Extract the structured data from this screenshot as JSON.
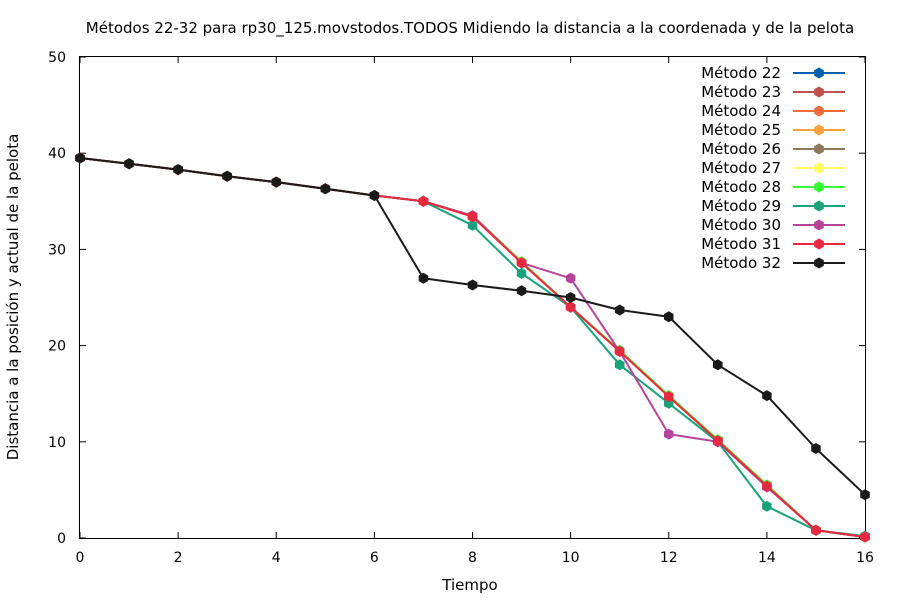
{
  "chart_data": {
    "type": "line",
    "title": "Métodos 22-32 para rp30_125.movstodos.TODOS Midiendo la distancia a la coordenada y de la pelota",
    "xlabel": "Tiempo",
    "ylabel": "Distancia a la posición y actual de la pelota",
    "xlim": [
      0,
      16
    ],
    "ylim": [
      0,
      50
    ],
    "xticks": [
      0,
      2,
      4,
      6,
      8,
      10,
      12,
      14,
      16
    ],
    "yticks": [
      0,
      10,
      20,
      30,
      40,
      50
    ],
    "grid": false,
    "legend_position": "top-right",
    "series": [
      {
        "name": "Método 22",
        "color": "#0060ad",
        "x": [
          0,
          1,
          2,
          3,
          4,
          5,
          6,
          7,
          8,
          9,
          10,
          11,
          12,
          13,
          14,
          15,
          16
        ],
        "y": [
          39.5,
          38.9,
          38.3,
          37.6,
          37.0,
          36.3,
          35.6,
          35.0,
          33.5,
          28.7,
          24.0,
          19.5,
          14.8,
          10.2,
          5.5,
          0.8,
          0.1
        ]
      },
      {
        "name": "Método 23",
        "color": "#c0504d",
        "x": [
          0,
          1,
          2,
          3,
          4,
          5,
          6,
          7,
          8,
          9,
          10,
          11,
          12,
          13,
          14,
          15,
          16
        ],
        "y": [
          39.5,
          38.9,
          38.3,
          37.6,
          37.0,
          36.3,
          35.6,
          35.0,
          33.5,
          28.7,
          24.0,
          19.5,
          14.8,
          10.2,
          5.5,
          0.8,
          0.1
        ]
      },
      {
        "name": "Método 24",
        "color": "#f26b38",
        "x": [
          0,
          1,
          2,
          3,
          4,
          5,
          6,
          7,
          8,
          9,
          10,
          11,
          12,
          13,
          14,
          15,
          16
        ],
        "y": [
          39.5,
          38.9,
          38.3,
          37.6,
          37.0,
          36.3,
          35.6,
          35.0,
          33.5,
          28.7,
          24.0,
          19.5,
          14.8,
          10.2,
          5.5,
          0.8,
          0.1
        ]
      },
      {
        "name": "Método 25",
        "color": "#f9a03f",
        "x": [
          0,
          1,
          2,
          3,
          4,
          5,
          6,
          7,
          8,
          9,
          10,
          11,
          12,
          13,
          14,
          15,
          16
        ],
        "y": [
          39.5,
          38.9,
          38.3,
          37.6,
          37.0,
          36.3,
          35.6,
          35.0,
          33.5,
          28.7,
          24.0,
          19.5,
          14.8,
          10.2,
          5.5,
          0.8,
          0.1
        ]
      },
      {
        "name": "Método 26",
        "color": "#8a7a5a",
        "x": [
          0,
          1,
          2,
          3,
          4,
          5,
          6,
          7,
          8,
          9,
          10,
          11,
          12,
          13,
          14,
          15,
          16
        ],
        "y": [
          39.5,
          38.9,
          38.3,
          37.6,
          37.0,
          36.3,
          35.6,
          35.0,
          33.5,
          28.7,
          24.0,
          19.5,
          14.8,
          10.2,
          5.5,
          0.8,
          0.1
        ]
      },
      {
        "name": "Método 27",
        "color": "#ffff66",
        "x": [
          0,
          1,
          2,
          3,
          4,
          5,
          6,
          7,
          8,
          9,
          10,
          11,
          12,
          13,
          14,
          15,
          16
        ],
        "y": [
          39.5,
          38.9,
          38.3,
          37.6,
          37.0,
          36.3,
          35.6,
          35.0,
          33.5,
          28.7,
          24.0,
          19.5,
          14.8,
          10.2,
          5.5,
          0.8,
          0.1
        ]
      },
      {
        "name": "Método 28",
        "color": "#33ff33",
        "x": [
          0,
          1,
          2,
          3,
          4,
          5,
          6,
          7,
          8,
          9,
          10,
          11,
          12,
          13,
          14,
          15,
          16
        ],
        "y": [
          39.5,
          38.9,
          38.3,
          37.6,
          37.0,
          36.3,
          35.6,
          35.0,
          33.5,
          28.7,
          24.0,
          19.5,
          14.8,
          10.2,
          5.5,
          0.8,
          0.1
        ]
      },
      {
        "name": "Método 29",
        "color": "#1aa37a",
        "x": [
          0,
          1,
          2,
          3,
          4,
          5,
          6,
          7,
          8,
          9,
          10,
          11,
          12,
          13,
          14,
          15,
          16
        ],
        "y": [
          39.5,
          38.9,
          38.3,
          37.6,
          37.0,
          36.3,
          35.6,
          35.0,
          32.5,
          27.5,
          24.0,
          18.0,
          14.0,
          10.0,
          3.3,
          0.8,
          0.2
        ]
      },
      {
        "name": "Método 30",
        "color": "#b5449b",
        "x": [
          0,
          1,
          2,
          3,
          4,
          5,
          6,
          7,
          8,
          9,
          10,
          11,
          12,
          13,
          14,
          15,
          16
        ],
        "y": [
          39.5,
          38.9,
          38.3,
          37.6,
          37.0,
          36.3,
          35.6,
          35.0,
          33.5,
          28.6,
          27.0,
          19.4,
          10.8,
          10.0,
          5.3,
          0.8,
          0.1
        ]
      },
      {
        "name": "Método 31",
        "color": "#e8283f",
        "x": [
          0,
          1,
          2,
          3,
          4,
          5,
          6,
          7,
          8,
          9,
          10,
          11,
          12,
          13,
          14,
          15,
          16
        ],
        "y": [
          39.5,
          38.9,
          38.3,
          37.6,
          37.0,
          36.3,
          35.6,
          35.0,
          33.4,
          28.6,
          24.0,
          19.4,
          14.7,
          10.1,
          5.4,
          0.8,
          0.1
        ]
      },
      {
        "name": "Método 32",
        "color": "#1a1a1a",
        "x": [
          0,
          1,
          2,
          3,
          4,
          5,
          6,
          7,
          8,
          9,
          10,
          11,
          12,
          13,
          14,
          15,
          16
        ],
        "y": [
          39.5,
          38.9,
          38.3,
          37.6,
          37.0,
          36.3,
          35.6,
          27.0,
          26.3,
          25.7,
          25.0,
          23.7,
          23.0,
          18.0,
          14.8,
          9.3,
          4.5
        ]
      }
    ]
  }
}
